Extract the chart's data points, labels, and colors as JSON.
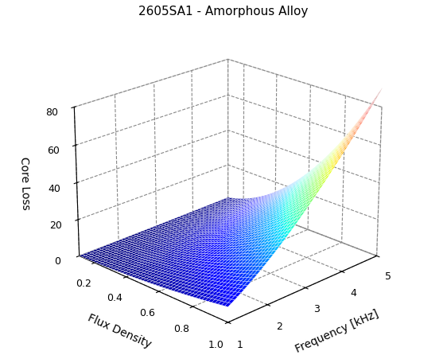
{
  "title": "2605SA1 - Amorphous Alloy",
  "xlabel": "Frequency [kHz]",
  "ylabel": "Flux Density",
  "zlabel": "Core Loss",
  "freq_min": 1,
  "freq_max": 5,
  "flux_min": 0.1,
  "flux_max": 1.0,
  "freq_ticks": [
    1,
    2,
    3,
    4,
    5
  ],
  "flux_ticks": [
    0.2,
    0.4,
    0.6,
    0.8,
    1.0
  ],
  "zlim": [
    0,
    80
  ],
  "zticks": [
    0,
    20,
    40,
    60,
    80
  ],
  "n_freq": 50,
  "n_flux": 50,
  "C": 8.05,
  "alpha_f": 1.5,
  "alpha_b": 2.0,
  "background_color": "#ffffff",
  "title_fontsize": 11,
  "label_fontsize": 10,
  "tick_fontsize": 9,
  "elev": 22,
  "azim": -135
}
